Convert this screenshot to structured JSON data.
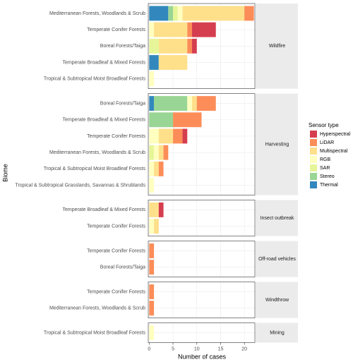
{
  "chart_data": {
    "type": "bar",
    "orientation": "horizontal",
    "stacked": true,
    "xlabel": "Number of cases",
    "ylabel": "Biome",
    "legend_title": "Sensor type",
    "xlim": [
      -0.2,
      22.2
    ],
    "xticks": [
      0,
      5,
      10,
      15,
      20
    ],
    "grid": true,
    "series": [
      {
        "name": "Hyperspectral",
        "color": "#d53e4f"
      },
      {
        "name": "LiDAR",
        "color": "#fc8d59"
      },
      {
        "name": "Multispectral",
        "color": "#fee08b"
      },
      {
        "name": "RGB",
        "color": "#ffffbf"
      },
      {
        "name": "SAR",
        "color": "#e6f598"
      },
      {
        "name": "Stereo",
        "color": "#99d594"
      },
      {
        "name": "Thermal",
        "color": "#3288bd"
      }
    ],
    "facets": [
      {
        "label": "Wildfire",
        "categories": [
          "Mediterranean Forests, Woodlands & Scrub",
          "Temperate Conifer Forests",
          "Boreal Forests/Taiga",
          "Temperate Broadleaf & Mixed Forests",
          "Tropical & Subtropical Moist Broadleaf Forests"
        ],
        "values": [
          [
            0,
            5,
            1,
            0,
            0
          ],
          [
            2,
            1,
            1,
            0,
            0
          ],
          [
            13,
            7,
            6,
            6,
            0
          ],
          [
            1,
            1,
            0,
            0,
            1
          ],
          [
            1,
            0,
            2,
            0,
            0
          ],
          [
            1,
            0,
            0,
            0,
            0
          ],
          [
            4,
            0,
            0,
            2,
            0
          ]
        ]
      },
      {
        "label": "Harvesting",
        "categories": [
          "Boreal Forests/Taiga",
          "Temperate Broadleaf & Mixed Forests",
          "Temperate Conifer Forests",
          "Mediterranean Forests, Woodlands & Scrub",
          "Tropical & Subtropical Moist Broadleaf Forests",
          "Tropical & Subtropical Grasslands, Savannas & Shrublands"
        ],
        "values": [
          [
            0,
            0,
            1,
            0,
            0,
            0
          ],
          [
            4,
            6,
            2,
            1,
            1,
            0
          ],
          [
            1,
            0,
            3,
            1,
            1,
            0
          ],
          [
            1,
            0,
            2,
            1,
            1,
            1
          ],
          [
            0,
            0,
            0,
            1,
            0,
            0
          ],
          [
            7,
            5,
            0,
            0,
            0,
            0
          ],
          [
            1,
            0,
            0,
            0,
            0,
            0
          ]
        ]
      },
      {
        "label": "Insect outbreak",
        "categories": [
          "Temperate Broadleaf & Mixed Forests",
          "Temperate Conifer Forests"
        ],
        "values": [
          [
            1,
            0
          ],
          [
            0,
            0
          ],
          [
            2,
            1
          ],
          [
            0,
            1
          ],
          [
            0,
            0
          ],
          [
            0,
            0
          ],
          [
            0,
            0
          ]
        ]
      },
      {
        "label": "Off-road vehicles",
        "categories": [
          "Temperate Conifer Forests",
          "Boreal Forests/Taiga"
        ],
        "values": [
          [
            0,
            0
          ],
          [
            1,
            1
          ],
          [
            0,
            0
          ],
          [
            0,
            0
          ],
          [
            0,
            0
          ],
          [
            0,
            0
          ],
          [
            0,
            0
          ]
        ]
      },
      {
        "label": "Windthrow",
        "categories": [
          "Temperate Conifer Forests",
          "Mediterranean Forests, Woodlands & Scrub"
        ],
        "values": [
          [
            0,
            0
          ],
          [
            1,
            1
          ],
          [
            0,
            0
          ],
          [
            0,
            0
          ],
          [
            0,
            0
          ],
          [
            0,
            0
          ],
          [
            0,
            0
          ]
        ]
      },
      {
        "label": "Mining",
        "categories": [
          "Tropical & Subtropical Moist Broadleaf Forests"
        ],
        "values": [
          [
            0
          ],
          [
            0
          ],
          [
            0
          ],
          [
            1
          ],
          [
            0
          ],
          [
            0
          ],
          [
            0
          ]
        ]
      }
    ]
  }
}
